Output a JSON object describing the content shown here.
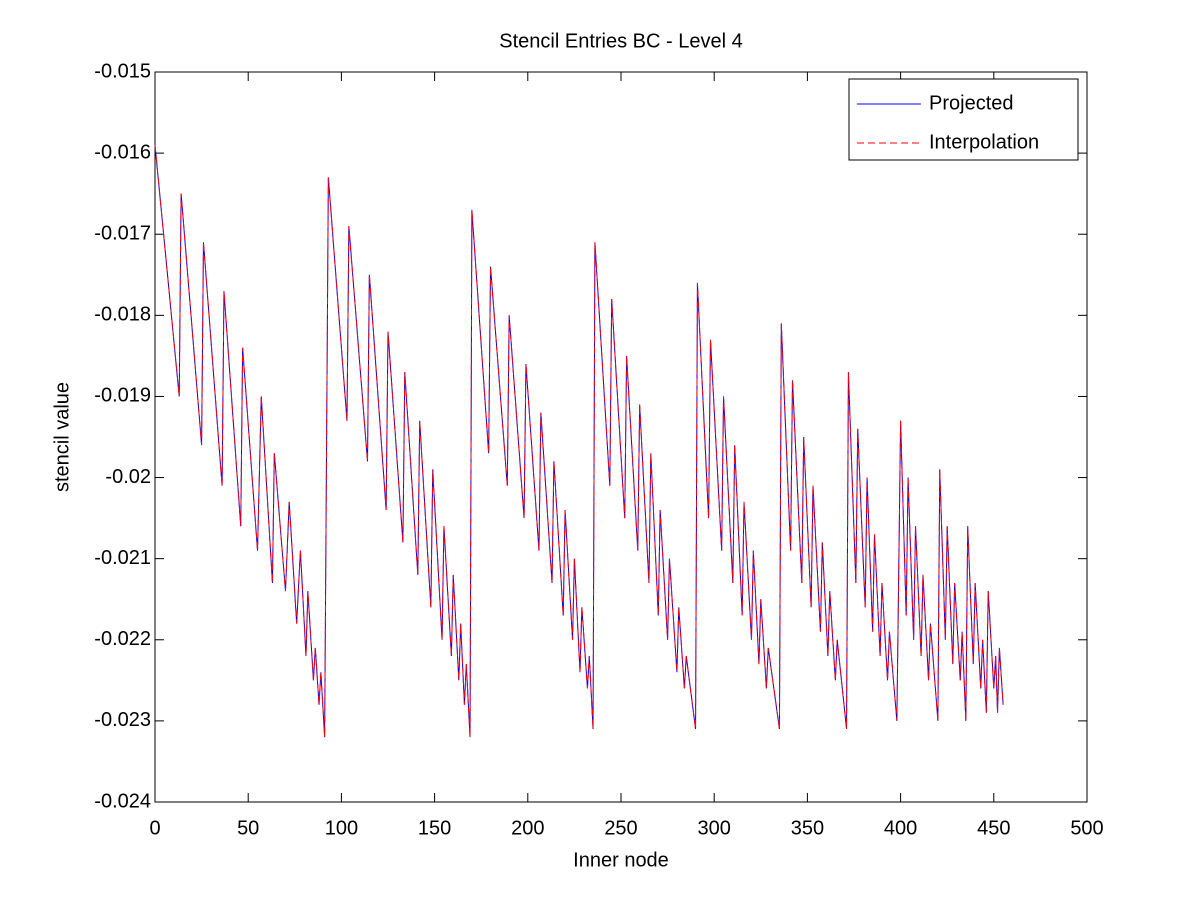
{
  "chart_data": {
    "type": "line",
    "title": "Stencil Entries BC - Level 4",
    "xlabel": "Inner node",
    "ylabel": "stencil value",
    "xlim": [
      0,
      500
    ],
    "xticks": [
      0,
      50,
      100,
      150,
      200,
      250,
      300,
      350,
      400,
      450,
      500
    ],
    "ylim": [
      -0.024,
      -0.015
    ],
    "yticks": [
      -0.024,
      -0.023,
      -0.022,
      -0.021,
      -0.02,
      -0.019,
      -0.018,
      -0.017,
      -0.016,
      -0.015
    ],
    "legend": "northeast",
    "grid": false,
    "x": [
      0,
      13,
      14,
      25,
      26,
      36,
      37,
      46,
      47,
      55,
      57,
      63,
      64,
      70,
      72,
      76,
      78,
      81,
      82,
      85,
      86,
      88,
      89,
      91,
      93,
      103,
      104,
      114,
      115,
      124,
      125,
      133,
      134,
      141,
      142,
      148,
      149,
      154,
      155,
      159,
      160,
      163,
      164,
      166,
      167,
      169,
      170,
      179,
      180,
      189,
      190,
      198,
      199,
      206,
      207,
      213,
      214,
      219,
      220,
      224,
      225,
      228,
      229,
      232,
      233,
      235,
      236,
      244,
      245,
      252,
      253,
      259,
      260,
      265,
      266,
      270,
      271,
      275,
      276,
      280,
      281,
      284,
      285,
      290,
      291,
      297,
      298,
      304,
      305,
      310,
      311,
      315,
      316,
      320,
      321,
      324,
      325,
      328,
      329,
      335,
      336,
      341,
      342,
      347,
      348,
      352,
      353,
      357,
      358,
      361,
      362,
      365,
      366,
      371,
      372,
      376,
      377,
      381,
      382,
      385,
      386,
      389,
      390,
      393,
      394,
      398,
      400,
      403,
      404,
      407,
      408,
      411,
      412,
      415,
      416,
      420,
      421,
      424,
      425,
      428,
      429,
      432,
      433,
      435,
      436,
      439,
      440,
      443,
      444,
      446,
      447,
      450,
      451,
      452,
      453,
      455
    ],
    "series": [
      {
        "name": "Projected",
        "color": "#0000ff",
        "line_style": "solid",
        "values": [
          -0.0159,
          -0.019,
          -0.0165,
          -0.0196,
          -0.0171,
          -0.0201,
          -0.0177,
          -0.0206,
          -0.0184,
          -0.0209,
          -0.019,
          -0.0213,
          -0.0197,
          -0.0214,
          -0.0203,
          -0.0218,
          -0.0209,
          -0.0222,
          -0.0214,
          -0.0225,
          -0.0221,
          -0.0228,
          -0.0224,
          -0.0232,
          -0.0163,
          -0.0193,
          -0.0169,
          -0.0198,
          -0.0175,
          -0.0204,
          -0.0182,
          -0.0208,
          -0.0187,
          -0.0212,
          -0.0193,
          -0.0216,
          -0.0199,
          -0.022,
          -0.0206,
          -0.0222,
          -0.0212,
          -0.0225,
          -0.0218,
          -0.0228,
          -0.0223,
          -0.0232,
          -0.0167,
          -0.0197,
          -0.0174,
          -0.0201,
          -0.018,
          -0.0205,
          -0.0186,
          -0.0209,
          -0.0192,
          -0.0213,
          -0.0198,
          -0.0217,
          -0.0204,
          -0.022,
          -0.021,
          -0.0224,
          -0.0216,
          -0.0226,
          -0.0222,
          -0.0231,
          -0.0171,
          -0.0201,
          -0.0178,
          -0.0205,
          -0.0185,
          -0.0209,
          -0.0191,
          -0.0213,
          -0.0197,
          -0.0217,
          -0.0204,
          -0.022,
          -0.021,
          -0.0224,
          -0.0216,
          -0.0226,
          -0.0222,
          -0.0231,
          -0.0176,
          -0.0205,
          -0.0183,
          -0.0209,
          -0.019,
          -0.0213,
          -0.0196,
          -0.0217,
          -0.0203,
          -0.022,
          -0.0209,
          -0.0223,
          -0.0215,
          -0.0226,
          -0.0221,
          -0.0231,
          -0.0181,
          -0.0209,
          -0.0188,
          -0.0213,
          -0.0195,
          -0.0216,
          -0.0201,
          -0.0219,
          -0.0208,
          -0.0222,
          -0.0214,
          -0.0225,
          -0.022,
          -0.0231,
          -0.0187,
          -0.0213,
          -0.0194,
          -0.0216,
          -0.02,
          -0.0219,
          -0.0207,
          -0.0222,
          -0.0213,
          -0.0225,
          -0.0219,
          -0.023,
          -0.0193,
          -0.0217,
          -0.02,
          -0.022,
          -0.0206,
          -0.0222,
          -0.0212,
          -0.0225,
          -0.0218,
          -0.023,
          -0.0199,
          -0.022,
          -0.0206,
          -0.0223,
          -0.0213,
          -0.0225,
          -0.0219,
          -0.023,
          -0.0206,
          -0.0223,
          -0.0213,
          -0.0226,
          -0.022,
          -0.0229,
          -0.0214,
          -0.0226,
          -0.0222,
          -0.0229,
          -0.0221,
          -0.0228
        ]
      },
      {
        "name": "Interpolation",
        "color": "#ff0000",
        "line_style": "dashed",
        "values": [
          -0.0159,
          -0.019,
          -0.0165,
          -0.0196,
          -0.0171,
          -0.0201,
          -0.0177,
          -0.0206,
          -0.0184,
          -0.0209,
          -0.019,
          -0.0213,
          -0.0197,
          -0.0214,
          -0.0203,
          -0.0218,
          -0.0209,
          -0.0222,
          -0.0214,
          -0.0225,
          -0.0221,
          -0.0228,
          -0.0224,
          -0.0232,
          -0.0163,
          -0.0193,
          -0.0169,
          -0.0198,
          -0.0175,
          -0.0204,
          -0.0182,
          -0.0208,
          -0.0187,
          -0.0212,
          -0.0193,
          -0.0216,
          -0.0199,
          -0.022,
          -0.0206,
          -0.0222,
          -0.0212,
          -0.0225,
          -0.0218,
          -0.0228,
          -0.0223,
          -0.0232,
          -0.0167,
          -0.0197,
          -0.0174,
          -0.0201,
          -0.018,
          -0.0205,
          -0.0186,
          -0.0209,
          -0.0192,
          -0.0213,
          -0.0198,
          -0.0217,
          -0.0204,
          -0.022,
          -0.021,
          -0.0224,
          -0.0216,
          -0.0226,
          -0.0222,
          -0.0231,
          -0.0171,
          -0.0201,
          -0.0178,
          -0.0205,
          -0.0185,
          -0.0209,
          -0.0191,
          -0.0213,
          -0.0197,
          -0.0217,
          -0.0204,
          -0.022,
          -0.021,
          -0.0224,
          -0.0216,
          -0.0226,
          -0.0222,
          -0.0231,
          -0.0176,
          -0.0205,
          -0.0183,
          -0.0209,
          -0.019,
          -0.0213,
          -0.0196,
          -0.0217,
          -0.0203,
          -0.022,
          -0.0209,
          -0.0223,
          -0.0215,
          -0.0226,
          -0.0221,
          -0.0231,
          -0.0181,
          -0.0209,
          -0.0188,
          -0.0213,
          -0.0195,
          -0.0216,
          -0.0201,
          -0.0219,
          -0.0208,
          -0.0222,
          -0.0214,
          -0.0225,
          -0.022,
          -0.0231,
          -0.0187,
          -0.0213,
          -0.0194,
          -0.0216,
          -0.02,
          -0.0219,
          -0.0207,
          -0.0222,
          -0.0213,
          -0.0225,
          -0.0219,
          -0.023,
          -0.0193,
          -0.0217,
          -0.02,
          -0.022,
          -0.0206,
          -0.0222,
          -0.0212,
          -0.0225,
          -0.0218,
          -0.023,
          -0.0199,
          -0.022,
          -0.0206,
          -0.0223,
          -0.0213,
          -0.0225,
          -0.0219,
          -0.023,
          -0.0206,
          -0.0223,
          -0.0213,
          -0.0226,
          -0.022,
          -0.0229,
          -0.0214,
          -0.0226,
          -0.0222,
          -0.0229,
          -0.0221,
          -0.0228
        ]
      }
    ]
  }
}
